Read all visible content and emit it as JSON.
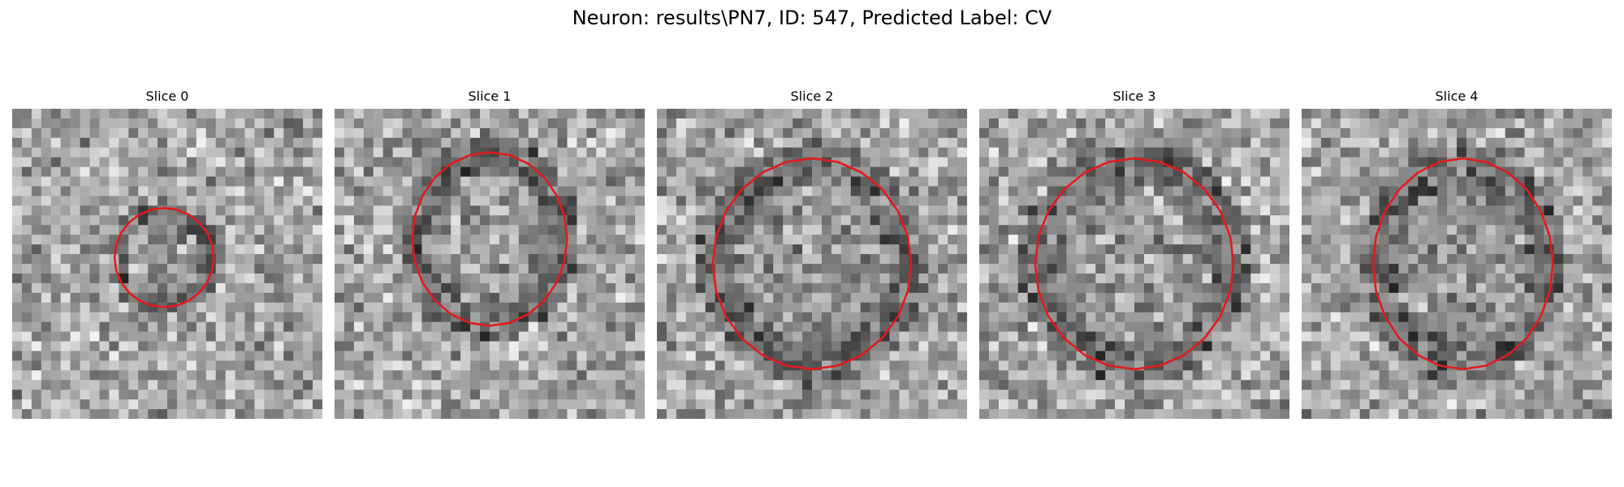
{
  "figure": {
    "title": "Neuron: results\\PN7, ID: 547, Predicted Label: CV"
  },
  "panels": [
    {
      "title": "Slice 0",
      "seed": 11,
      "contour_color": "#e31a1c",
      "contour_center": [
        0.49,
        0.48
      ],
      "contour_radius": [
        0.16,
        0.16
      ],
      "dark_rim": 1
    },
    {
      "title": "Slice 1",
      "seed": 23,
      "contour_color": "#e31a1c",
      "contour_center": [
        0.5,
        0.42
      ],
      "contour_radius": [
        0.25,
        0.28
      ],
      "dark_rim": 1
    },
    {
      "title": "Slice 2",
      "seed": 37,
      "contour_color": "#e31a1c",
      "contour_center": [
        0.5,
        0.5
      ],
      "contour_radius": [
        0.32,
        0.34
      ],
      "dark_rim": 1
    },
    {
      "title": "Slice 3",
      "seed": 41,
      "contour_color": "#e31a1c",
      "contour_center": [
        0.5,
        0.5
      ],
      "contour_radius": [
        0.32,
        0.34
      ],
      "dark_rim": 1
    },
    {
      "title": "Slice 4",
      "seed": 53,
      "contour_color": "#e31a1c",
      "contour_center": [
        0.52,
        0.5
      ],
      "contour_radius": [
        0.29,
        0.34
      ],
      "dark_rim": 1
    }
  ]
}
